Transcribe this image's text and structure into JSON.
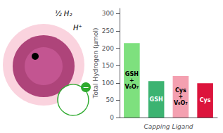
{
  "chart_data": {
    "type": "bar",
    "xlabel": "Capping Ligand",
    "ylabel": "Total Hydrogen (μmol)",
    "categories": [
      "GSH\n+\nV₆O₇",
      "GSH",
      "Cys\n+\nV₆O₇",
      "Cys"
    ],
    "values": [
      215,
      105,
      120,
      99
    ],
    "colors": [
      "#7EE07E",
      "#3CB371",
      "#F4A0B0",
      "#DC143C"
    ],
    "ylim": [
      0,
      315
    ],
    "yticks": [
      0,
      50,
      100,
      150,
      200,
      250,
      300
    ],
    "grid": false,
    "tick_labels": "y",
    "annotations": [
      "½ H₂",
      "H⁺",
      "−"
    ]
  }
}
